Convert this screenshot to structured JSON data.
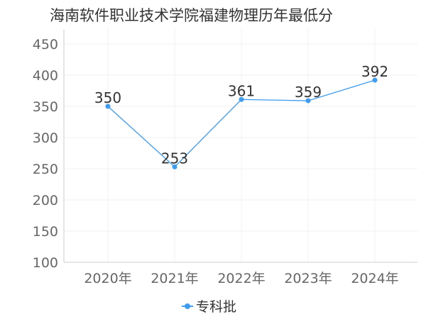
{
  "chart_data": {
    "type": "line",
    "title": "海南软件职业技术学院福建物理历年最低分",
    "categories": [
      "2020年",
      "2021年",
      "2022年",
      "2023年",
      "2024年"
    ],
    "series": [
      {
        "name": "专科批",
        "values": [
          350,
          253,
          361,
          359,
          392
        ],
        "color": "#3d9bf0"
      }
    ],
    "ylim": [
      100,
      450
    ],
    "yticks": [
      100,
      150,
      200,
      250,
      300,
      350,
      400,
      450
    ],
    "grid": true,
    "legend_position": "bottom-center",
    "data_labels": true
  }
}
